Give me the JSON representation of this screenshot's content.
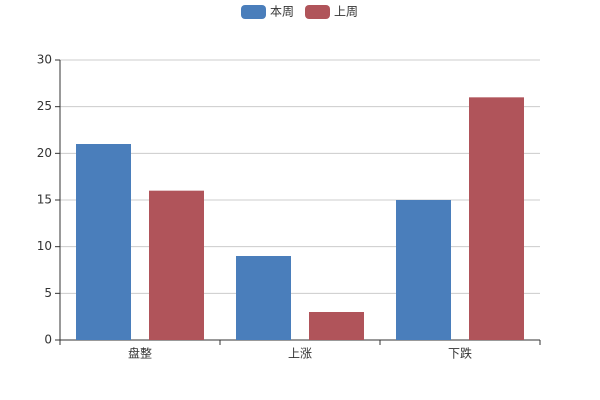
{
  "chart_data": {
    "type": "bar",
    "categories": [
      "盘整",
      "上涨",
      "下跌"
    ],
    "series": [
      {
        "name": "本周",
        "color": "#4a7ebb",
        "values": [
          21,
          9,
          15
        ]
      },
      {
        "name": "上周",
        "color": "#b0545a",
        "values": [
          16,
          3,
          26
        ]
      }
    ],
    "ylim": [
      0,
      30
    ],
    "yticks": [
      0,
      5,
      10,
      15,
      20,
      25,
      30
    ],
    "grid": true
  }
}
